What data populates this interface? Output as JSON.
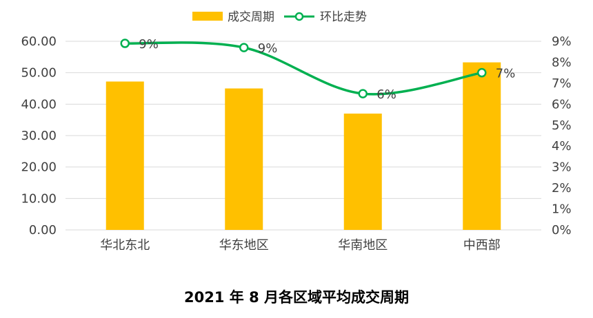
{
  "chart_data": {
    "type": "bar",
    "title": "2021 年 8 月各区域平均成交周期",
    "categories": [
      "华北东北",
      "华东地区",
      "华南地区",
      "中西部"
    ],
    "series": [
      {
        "name": "成交周期",
        "type": "bar",
        "axis": "left",
        "values": [
          47.2,
          45.0,
          37.0,
          53.3
        ]
      },
      {
        "name": "环比走势",
        "type": "line",
        "axis": "right",
        "values": [
          8.9,
          8.7,
          6.5,
          7.5
        ],
        "labels": [
          "9%",
          "9%",
          "6%",
          "7%"
        ]
      }
    ],
    "left_axis": {
      "min": 0,
      "max": 60,
      "step": 10,
      "tick_labels": [
        "0.00",
        "10.00",
        "20.00",
        "30.00",
        "40.00",
        "50.00",
        "60.00"
      ]
    },
    "right_axis": {
      "min": 0,
      "max": 9,
      "step": 1,
      "tick_labels": [
        "0%",
        "1%",
        "2%",
        "3%",
        "4%",
        "5%",
        "6%",
        "7%",
        "8%",
        "9%"
      ]
    },
    "legend_position": "top-center",
    "grid": true,
    "colors": {
      "bar": "#FFC000",
      "line": "#00B050",
      "grid": "#D9D9D9",
      "text": "#404040"
    }
  }
}
